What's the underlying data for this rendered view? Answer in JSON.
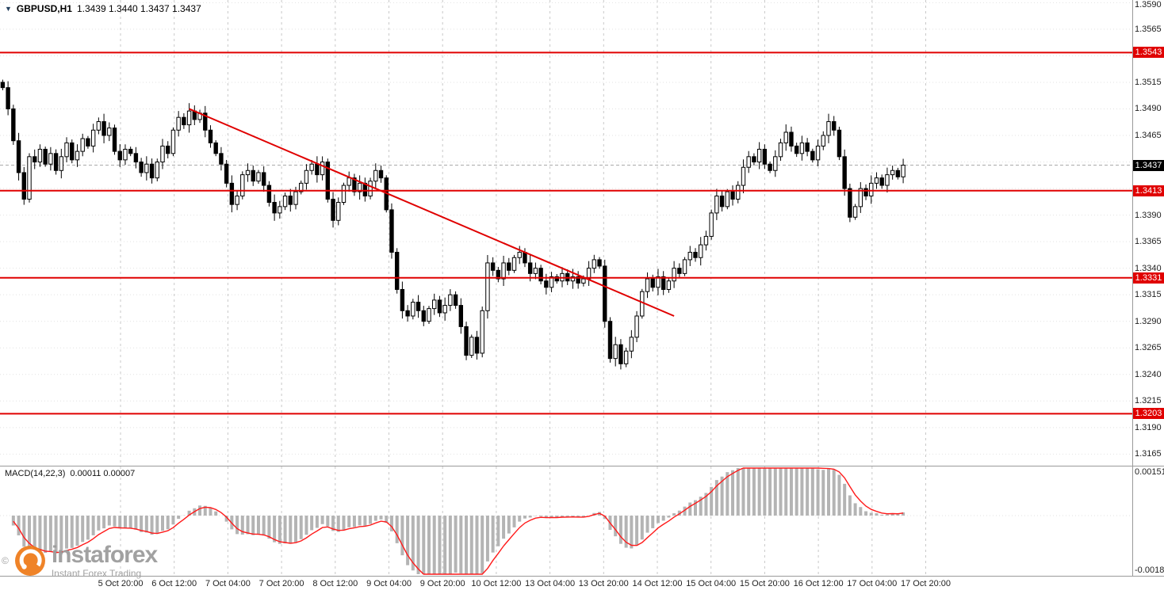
{
  "header": {
    "symbol_period": "GBPUSD,H1",
    "ohlc": "1.3439 1.3440 1.3437 1.3437"
  },
  "watermark": {
    "copyright": "©",
    "brand": "instaforex",
    "tagline": "Instant Forex Trading",
    "logo_color": "#ef7d1d"
  },
  "chart_data": {
    "type": "candlestick",
    "symbol": "GBPUSD",
    "timeframe": "H1",
    "current_ohlc": {
      "open": "1.3439",
      "high": "1.3440",
      "low": "1.3437",
      "close": "1.3437"
    },
    "y_axis": {
      "min": 1.3165,
      "max": 1.359,
      "tick_step": 0.0025,
      "labels": [
        "1.3590",
        "1.3565",
        "1.3540",
        "1.3515",
        "1.3490",
        "1.3465",
        "1.3440",
        "1.3415",
        "1.3390",
        "1.3365",
        "1.3340",
        "1.3315",
        "1.3290",
        "1.3265",
        "1.3240",
        "1.3215",
        "1.3190",
        "1.3165"
      ]
    },
    "x_labels": [
      "5 Oct 20:00",
      "6 Oct 12:00",
      "7 Oct 04:00",
      "7 Oct 20:00",
      "8 Oct 12:00",
      "9 Oct 04:00",
      "9 Oct 20:00",
      "10 Oct 12:00",
      "13 Oct 04:00",
      "13 Oct 20:00",
      "14 Oct 12:00",
      "15 Oct 04:00",
      "15 Oct 20:00",
      "16 Oct 12:00",
      "17 Oct 04:00",
      "17 Oct 20:00"
    ],
    "closes": [
      1.351,
      1.349,
      1.346,
      1.343,
      1.3405,
      1.3445,
      1.344,
      1.3452,
      1.3438,
      1.3448,
      1.3432,
      1.3445,
      1.3458,
      1.3442,
      1.345,
      1.3462,
      1.3455,
      1.347,
      1.3478,
      1.3465,
      1.3472,
      1.345,
      1.3442,
      1.3452,
      1.3448,
      1.344,
      1.343,
      1.3438,
      1.3425,
      1.344,
      1.3455,
      1.3448,
      1.347,
      1.3482,
      1.3475,
      1.3488,
      1.348,
      1.3486,
      1.347,
      1.3458,
      1.3448,
      1.3438,
      1.342,
      1.34,
      1.3408,
      1.3428,
      1.3432,
      1.3422,
      1.343,
      1.3418,
      1.3402,
      1.3392,
      1.3398,
      1.3408,
      1.34,
      1.3412,
      1.342,
      1.3432,
      1.3438,
      1.3428,
      1.344,
      1.3405,
      1.3385,
      1.3402,
      1.3418,
      1.3425,
      1.3412,
      1.342,
      1.3408,
      1.3422,
      1.3432,
      1.3425,
      1.3395,
      1.3355,
      1.332,
      1.33,
      1.3295,
      1.3308,
      1.33,
      1.329,
      1.3302,
      1.331,
      1.3298,
      1.3305,
      1.3315,
      1.3305,
      1.3285,
      1.3258,
      1.3275,
      1.326,
      1.33,
      1.3345,
      1.3338,
      1.333,
      1.3345,
      1.3338,
      1.335,
      1.3355,
      1.3345,
      1.3335,
      1.334,
      1.3328,
      1.3322,
      1.3332,
      1.3328,
      1.3335,
      1.3328,
      1.3332,
      1.3326,
      1.333,
      1.334,
      1.3348,
      1.3342,
      1.329,
      1.3255,
      1.3268,
      1.325,
      1.3262,
      1.3275,
      1.3295,
      1.3318,
      1.333,
      1.3322,
      1.3332,
      1.332,
      1.3328,
      1.334,
      1.3335,
      1.3348,
      1.3355,
      1.335,
      1.3362,
      1.337,
      1.3392,
      1.3408,
      1.3398,
      1.3412,
      1.3405,
      1.3418,
      1.3435,
      1.3445,
      1.344,
      1.3452,
      1.3438,
      1.3432,
      1.3445,
      1.3458,
      1.3468,
      1.3455,
      1.3448,
      1.3458,
      1.345,
      1.3442,
      1.3455,
      1.3465,
      1.3478,
      1.347,
      1.3445,
      1.3415,
      1.3388,
      1.3398,
      1.3415,
      1.3408,
      1.342,
      1.3425,
      1.3418,
      1.3428,
      1.3432,
      1.3426,
      1.3437
    ],
    "horizontal_levels": [
      {
        "price": 1.3543,
        "label": "1.3543"
      },
      {
        "price": 1.3413,
        "label": "1.3413"
      },
      {
        "price": 1.3331,
        "label": "1.3331"
      },
      {
        "price": 1.3203,
        "label": "1.3203"
      }
    ],
    "current_price": {
      "value": 1.3437,
      "label": "1.3437"
    },
    "trendline": {
      "bar1": 35,
      "price1": 1.349,
      "bar2": 126,
      "price2": 1.3295
    },
    "macd": {
      "name": "MACD(14,22,3)",
      "values_text": "0.00011 0.00007",
      "fast": 14,
      "slow": 22,
      "signal": 3,
      "y_max": 0.00151,
      "y_min": -0.00185,
      "axis_labels": [
        "0.00151",
        "-0.00185"
      ]
    },
    "colors": {
      "bull": "#ffffff",
      "bear": "#000000",
      "wick": "#000000",
      "level": "#e00000",
      "trendline": "#e00000",
      "grid_h": "#e2e2e2",
      "grid_v": "#c9c9c9",
      "bid_line": "#aaaaaa",
      "hist": "#b4b4b4",
      "signal": "#ff1a1a",
      "level_badge_bg": "#e00000",
      "current_badge_bg": "#000000"
    },
    "layout_hints": {
      "grid": true,
      "right_axis": true,
      "chart_shift_blank_right": true
    }
  }
}
